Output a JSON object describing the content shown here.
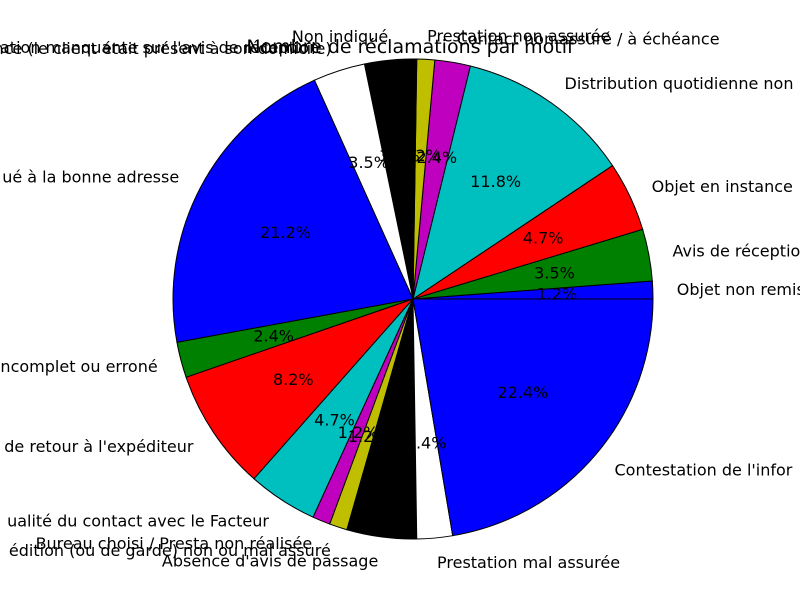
{
  "chart_data": {
    "type": "pie",
    "title": "Nombre de réclamations par motif",
    "start_angle_deg": 0,
    "direction": "counterclockwise",
    "slices": [
      {
        "label": "Objet non remis",
        "value": 1.2,
        "pct_label": "1.2%",
        "color": "#0000ff"
      },
      {
        "label": "Avis de réception",
        "value": 3.5,
        "pct_label": "3.5%",
        "color": "#008000"
      },
      {
        "label": "Objet en instance",
        "value": 4.7,
        "pct_label": "4.7%",
        "color": "#ff0000"
      },
      {
        "label": "Distribution quotidienne non",
        "value": 11.8,
        "pct_label": "11.8%",
        "color": "#00bfbf"
      },
      {
        "label": "Contact non assuré / à échéance",
        "value": 2.4,
        "pct_label": "2.4%",
        "color": "#bf00bf"
      },
      {
        "label": "Prestation non assurée",
        "value": 1.2,
        "pct_label": "1.2%",
        "color": "#bfbf00"
      },
      {
        "label": "Non indiqué",
        "value": 3.5,
        "pct_label": "3.5%",
        "color": "#000000"
      },
      {
        "label": "Objet en instance (le client était présent à son domicile)",
        "value": 3.5,
        "pct_label": "3.5%",
        "color": "#ffffff"
      },
      {
        "label": "ué à la bonne adresse",
        "value": 21.2,
        "pct_label": "21.2%",
        "color": "#0000ff"
      },
      {
        "label": "incomplet ou erroné",
        "value": 2.4,
        "pct_label": "2.4%",
        "color": "#008000"
      },
      {
        "label": "de retour à l'expéditeur",
        "value": 8.2,
        "pct_label": "8.2%",
        "color": "#ff0000"
      },
      {
        "label": "ualité du contact avec le Facteur",
        "value": 4.7,
        "pct_label": "4.7%",
        "color": "#00bfbf"
      },
      {
        "label": "Bureau choisi / Presta non réalisée",
        "value": 1.2,
        "pct_label": "1.2%",
        "color": "#bf00bf"
      },
      {
        "label": "édition (ou de garde) non ou mal assuré",
        "value": 1.2,
        "pct_label": "1.2%",
        "color": "#bfbf00"
      },
      {
        "label": "Absence d'avis de passage",
        "value": 4.7,
        "pct_label": "4.7%",
        "color": "#000000"
      },
      {
        "label": "Prestation mal assurée",
        "value": 2.4,
        "pct_label": "2.4%",
        "color": "#ffffff"
      },
      {
        "label": "Contestation de l'infor",
        "value": 22.4,
        "pct_label": "22.4%",
        "color": "#0000ff"
      }
    ],
    "extra_labels": [
      {
        "text": "ation manquante sur l'avis de réception"
      }
    ]
  }
}
